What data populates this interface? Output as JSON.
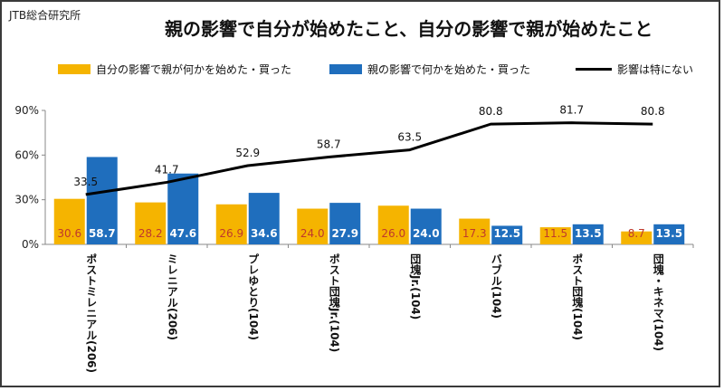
{
  "source": "JTB総合研究所",
  "title": "親の影響で自分が始めたこと、自分の影響で親が始めたこと",
  "colors": {
    "self_from_parent": "#f5b400",
    "parent_from_self": "#1f6ebd",
    "no_influence": "#000000",
    "self_label_text": "#c0392b",
    "parent_label_text": "#ffffff"
  },
  "chart_data": {
    "type": "bar",
    "categories": [
      "ポストミレニアル(206)",
      "ミレニアル(206)",
      "プレゆとり(104)",
      "ポスト団塊Jr.(104)",
      "団塊Jr.(104)",
      "バブル(104)",
      "ポスト団塊(104)",
      "団塊・キネマ(104)"
    ],
    "series": [
      {
        "name": "自分の影響で親が何かを始めた・買った",
        "type": "bar",
        "values": [
          30.6,
          28.2,
          26.9,
          24.0,
          26.0,
          17.3,
          11.5,
          8.7
        ]
      },
      {
        "name": "親の影響で何かを始めた・買った",
        "type": "bar",
        "values": [
          58.7,
          47.6,
          34.6,
          27.9,
          24.0,
          12.5,
          13.5,
          13.5
        ]
      },
      {
        "name": "影響は特にない",
        "type": "line",
        "values": [
          33.5,
          41.7,
          52.9,
          58.7,
          63.5,
          80.8,
          81.7,
          80.8
        ]
      }
    ],
    "yticks": [
      "0%",
      "30%",
      "60%",
      "90%"
    ],
    "ylim": [
      0,
      90
    ],
    "grid": false,
    "legend": "top"
  }
}
